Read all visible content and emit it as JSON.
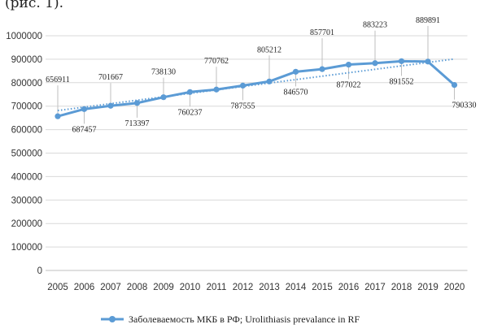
{
  "caption": "(рис. 1).",
  "chart_data": {
    "type": "line",
    "title": "",
    "xlabel": "",
    "ylabel": "",
    "ylim": [
      0,
      1000000
    ],
    "yticks": [
      0,
      100000,
      200000,
      300000,
      400000,
      500000,
      600000,
      700000,
      800000,
      900000,
      1000000
    ],
    "ytick_labels": [
      "0",
      "100000",
      "200000",
      "300000",
      "400000",
      "500000",
      "600000",
      "700000",
      "800000",
      "900000",
      "1000000"
    ],
    "categories": [
      "2005",
      "2006",
      "2007",
      "2008",
      "2009",
      "2010",
      "2011",
      "2012",
      "2013",
      "2014",
      "2015",
      "2016",
      "2017",
      "2018",
      "2019",
      "2020"
    ],
    "series": [
      {
        "name": "Заболеваемость МКБ в РФ;   Urolithiasis prevalance in RF",
        "values": [
          656911,
          687457,
          701667,
          713397,
          738130,
          760237,
          770762,
          787555,
          805212,
          846570,
          857701,
          877022,
          883223,
          891552,
          889891,
          790330
        ],
        "color": "#5b9bd5"
      }
    ],
    "data_labels": [
      "656911",
      "687457",
      "701667",
      "713397",
      "738130",
      "760237",
      "770762",
      "787555",
      "805212",
      "846570",
      "857701",
      "877022",
      "883223",
      "891552",
      "889891",
      "790330"
    ],
    "trendline": {
      "style": "dotted",
      "color": "#5b9bd5"
    },
    "grid": true,
    "legend": "bottom"
  }
}
